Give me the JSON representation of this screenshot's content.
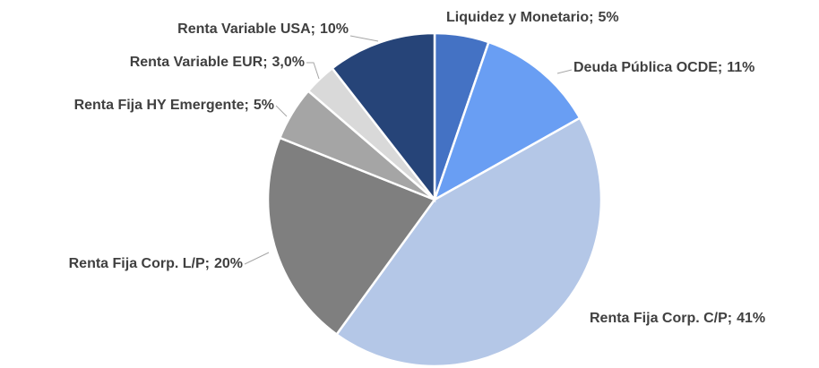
{
  "chart_data": {
    "type": "pie",
    "categories": [
      "Liquidez y Monetario;",
      "Deuda Pública OCDE;",
      "Renta Fija Corp. C/P;",
      "Renta Fija Corp. L/P;",
      "Renta Fija HY Emergente;",
      "Renta Variable EUR;",
      "Renta Variable USA;"
    ],
    "values": [
      5,
      11,
      41,
      20,
      5,
      3,
      10
    ],
    "value_labels": [
      "5%",
      "11%",
      "41%",
      "20%",
      "5%",
      "3,0%",
      "10%"
    ],
    "colors": [
      "#4472c4",
      "#699ef3",
      "#b4c7e7",
      "#7f7f7f",
      "#a5a5a5",
      "#d9d9d9",
      "#264478"
    ]
  }
}
